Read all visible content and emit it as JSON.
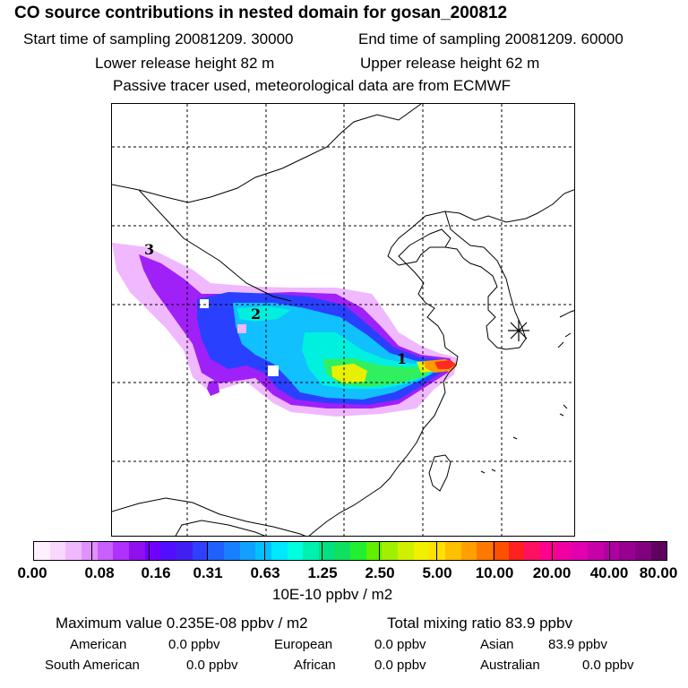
{
  "header": {
    "title": "CO  source contributions in nested domain for gosan_200812",
    "start_time": "Start time of sampling 20081209. 30000",
    "end_time": "End time of sampling 20081209. 60000",
    "lower_height": "Lower release height   82 m",
    "upper_height": "Upper release height   62 m",
    "tracer_note": "Passive tracer used, meteorological data are from ECMWF"
  },
  "map": {
    "labels": [
      "1",
      "2",
      "3"
    ],
    "receptor_symbol": "asterisk-icon"
  },
  "colorbar": {
    "ticks": [
      "0.00",
      "0.08",
      "0.16",
      "0.31",
      "0.63",
      "1.25",
      "2.50",
      "5.00",
      "10.00",
      "20.00",
      "40.00",
      "80.00"
    ],
    "unit": "10E-10 ppbv / m2",
    "colors": [
      "#fff0ff",
      "#f8d8ff",
      "#f0b8ff",
      "#e090ff",
      "#c860ff",
      "#b030ff",
      "#9010f0",
      "#7000ff",
      "#5010ff",
      "#4020f0",
      "#3040ff",
      "#2060ff",
      "#1880ff",
      "#10a0ff",
      "#00c0ff",
      "#00e8ff",
      "#00ffe0",
      "#00f0b0",
      "#00e080",
      "#10e060",
      "#20f030",
      "#60f000",
      "#a0f000",
      "#d0f000",
      "#f0f000",
      "#ffe000",
      "#ffc000",
      "#ffa000",
      "#ff7800",
      "#ff5000",
      "#ff2020",
      "#ff1060",
      "#ff0090",
      "#f000a0",
      "#e000b0",
      "#c800a8",
      "#b000a0",
      "#980090",
      "#800080",
      "#600060"
    ]
  },
  "footer": {
    "max_label": "Maximum value  0.235E-08 ppbv / m2",
    "total_label": "Total mixing ratio       83.9 ppbv",
    "regions": [
      {
        "name": "American",
        "value": "0.0 ppbv"
      },
      {
        "name": "European",
        "value": "0.0 ppbv"
      },
      {
        "name": "Asian",
        "value": "83.9 ppbv"
      },
      {
        "name": "South American",
        "value": "0.0 ppbv"
      },
      {
        "name": "African",
        "value": "0.0 ppbv"
      },
      {
        "name": "Australian",
        "value": "0.0 ppbv"
      }
    ]
  }
}
